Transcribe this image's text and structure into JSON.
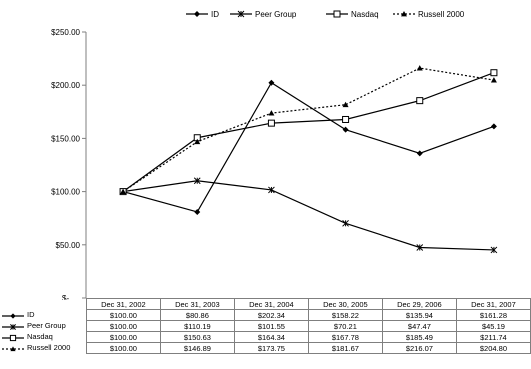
{
  "chart_data": {
    "type": "line",
    "title": "",
    "xlabel": "",
    "ylabel": "",
    "categories": [
      "Dec 31, 2002",
      "Dec 31, 2003",
      "Dec 31, 2004",
      "Dec 30, 2005",
      "Dec 29, 2006",
      "Dec 31, 2007"
    ],
    "ylim": [
      0,
      250
    ],
    "yticks": [
      0,
      50,
      100,
      150,
      200,
      250
    ],
    "ytick_labels": [
      "$-",
      "$50.00",
      "$100.00",
      "$150.00",
      "$200.00",
      "$250.00"
    ],
    "grid": false,
    "legend_position": "top",
    "series": [
      {
        "name": "ID",
        "marker": "diamond",
        "line": "solid",
        "color": "#000000",
        "values": [
          100.0,
          80.86,
          202.34,
          158.22,
          135.94,
          161.28
        ],
        "labels": [
          "$100.00",
          "$80.86",
          "$202.34",
          "$158.22",
          "$135.94",
          "$161.28"
        ]
      },
      {
        "name": "Peer Group",
        "marker": "star",
        "line": "solid",
        "color": "#000000",
        "values": [
          100.0,
          110.19,
          101.55,
          70.21,
          47.47,
          45.19
        ],
        "labels": [
          "$100.00",
          "$110.19",
          "$101.55",
          "$70.21",
          "$47.47",
          "$45.19"
        ]
      },
      {
        "name": "Nasdaq",
        "marker": "square",
        "line": "solid",
        "color": "#000000",
        "values": [
          100.0,
          150.63,
          164.34,
          167.78,
          185.49,
          211.74
        ],
        "labels": [
          "$100.00",
          "$150.63",
          "$164.34",
          "$167.78",
          "$185.49",
          "$211.74"
        ]
      },
      {
        "name": "Russell 2000",
        "marker": "triangle",
        "line": "dotted",
        "color": "#000000",
        "values": [
          100.0,
          146.89,
          173.75,
          181.67,
          216.07,
          204.8
        ],
        "labels": [
          "$100.00",
          "$146.89",
          "$173.75",
          "$181.67",
          "$216.07",
          "$204.80"
        ]
      }
    ]
  }
}
